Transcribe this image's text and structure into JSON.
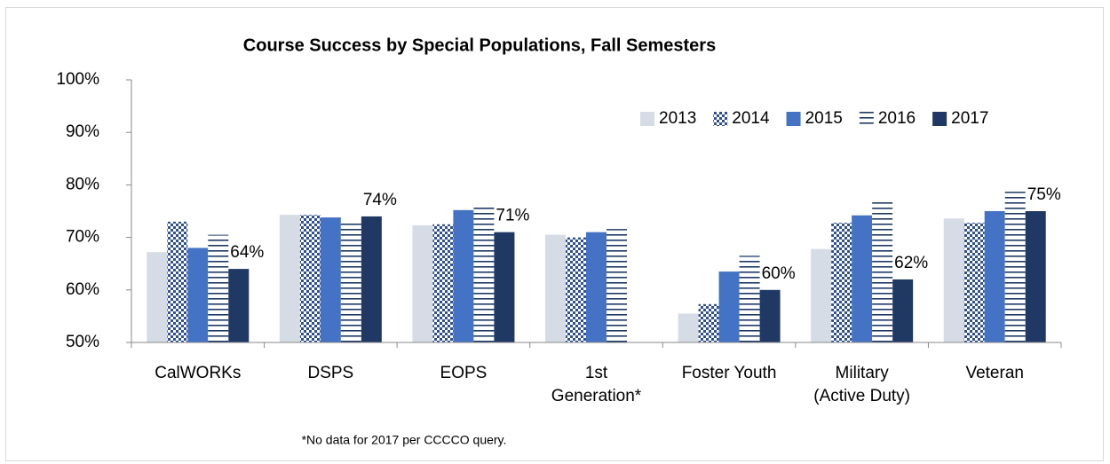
{
  "chart_data": {
    "type": "bar",
    "title": "Course Success by Special Populations, Fall Semesters",
    "categories": [
      "CalWORKs",
      "DSPS",
      "EOPS",
      "1st\nGeneration*",
      "Foster Youth",
      "Military\n(Active Duty)",
      "Veteran"
    ],
    "series": [
      {
        "name": "2013",
        "color": "#d6dce5",
        "values": [
          67.2,
          74.3,
          72.3,
          70.5,
          55.5,
          67.8,
          73.6
        ]
      },
      {
        "name": "2014",
        "color": "#2f4f8f",
        "pattern": "checker",
        "values": [
          73,
          74.3,
          72.5,
          70,
          57.3,
          72.8,
          72.8
        ]
      },
      {
        "name": "2015",
        "color": "#4472c4",
        "values": [
          68,
          73.8,
          75.2,
          71,
          63.5,
          74.2,
          75
        ]
      },
      {
        "name": "2016",
        "color": "#1f3864",
        "pattern": "hlines",
        "values": [
          70.5,
          73.3,
          76,
          71.6,
          66.5,
          77.3,
          78.7
        ]
      },
      {
        "name": "2017",
        "color": "#203864",
        "values": [
          64,
          74,
          71,
          null,
          60,
          62,
          75
        ],
        "value_labels": [
          "64%",
          "74%",
          "71%",
          null,
          "60%",
          "62%",
          "75%"
        ]
      }
    ],
    "ylim": [
      50,
      100
    ],
    "yticks": [
      {
        "value": 50,
        "label": "50%"
      },
      {
        "value": 60,
        "label": "60%"
      },
      {
        "value": 70,
        "label": "70%"
      },
      {
        "value": 80,
        "label": "80%"
      },
      {
        "value": 90,
        "label": "90%"
      },
      {
        "value": 100,
        "label": "100%"
      }
    ],
    "legend": "top-right",
    "footnote": "*No data for 2017 per CCCCO query."
  }
}
